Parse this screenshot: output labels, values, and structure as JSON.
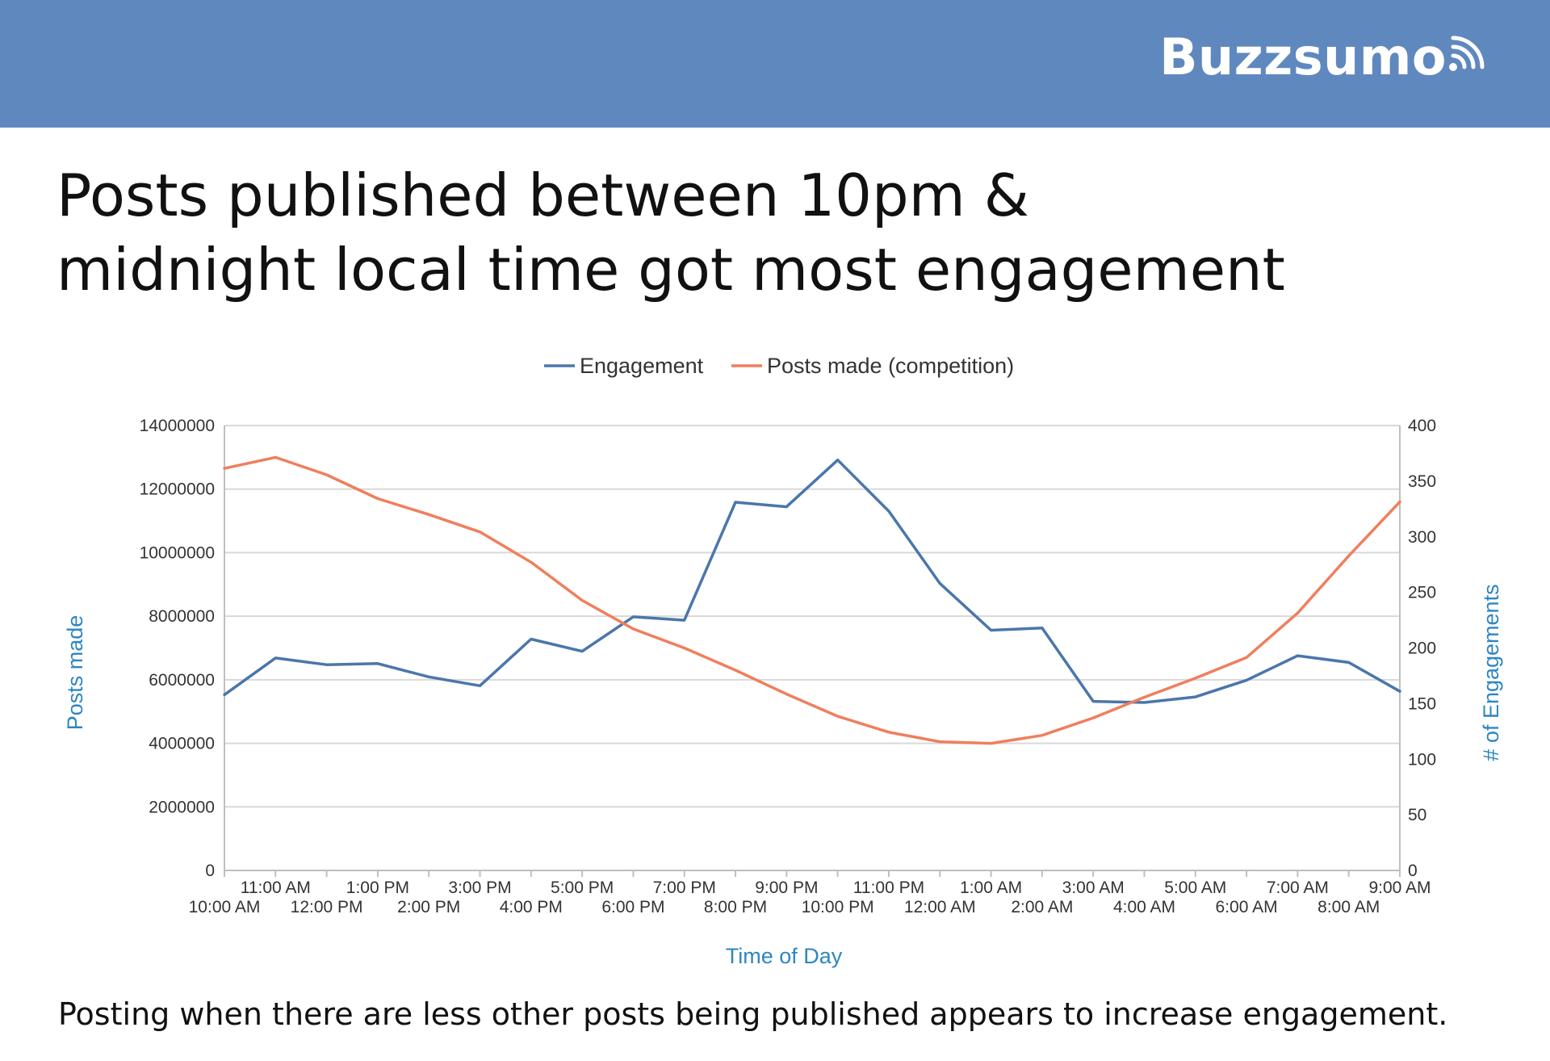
{
  "header": {
    "brand": "Buzzsumo",
    "brand_icon": "signal-waves-icon",
    "background_color": "#5f88be"
  },
  "title_lines": [
    "Posts published between 10pm &",
    "midnight local time got most engagement"
  ],
  "footnote": "Posting when there are less other posts being published appears to increase engagement.",
  "chart_data": {
    "type": "line",
    "title": "",
    "xlabel": "Time of Day",
    "ylabel": "Posts made",
    "y2label": "# of Engagements",
    "axis_title_color": "#2e86c1",
    "legend_position": "top-center",
    "grid": true,
    "categories": [
      "10:00 AM",
      "11:00 AM",
      "12:00 PM",
      "1:00 PM",
      "2:00 PM",
      "3:00 PM",
      "4:00 PM",
      "5:00 PM",
      "6:00 PM",
      "7:00 PM",
      "8:00 PM",
      "9:00 PM",
      "10:00 PM",
      "11:00 PM",
      "12:00 AM",
      "1:00 AM",
      "2:00 AM",
      "3:00 AM",
      "4:00 AM",
      "5:00 AM",
      "6:00 AM",
      "7:00 AM",
      "8:00 AM",
      "9:00 AM"
    ],
    "x_tick_rows": {
      "top": [
        "11:00 AM",
        "1:00 PM",
        "3:00 PM",
        "5:00 PM",
        "7:00 PM",
        "9:00 PM",
        "11:00 PM",
        "1:00 AM",
        "3:00 AM",
        "5:00 AM",
        "7:00 AM",
        "9:00 AM"
      ],
      "bottom": [
        "10:00 AM",
        "12:00 PM",
        "2:00 PM",
        "4:00 PM",
        "6:00 PM",
        "8:00 PM",
        "10:00 PM",
        "12:00 AM",
        "2:00 AM",
        "4:00 AM",
        "6:00 AM",
        "8:00 AM"
      ]
    },
    "ylim": [
      0,
      14000000
    ],
    "yticks": [
      "0",
      "2000000",
      "4000000",
      "6000000",
      "8000000",
      "10000000",
      "12000000",
      "14000000"
    ],
    "y2lim": [
      0,
      400
    ],
    "y2ticks": [
      "0",
      "50",
      "100",
      "150",
      "200",
      "250",
      "300",
      "350",
      "400"
    ],
    "series": [
      {
        "name": "Engagement",
        "axis": "right",
        "color": "#4a76ab",
        "values": [
          158,
          191,
          185,
          186,
          174,
          166,
          208,
          197,
          228,
          225,
          331,
          327,
          369,
          323,
          258,
          216,
          218,
          152,
          151,
          156,
          171,
          193,
          187,
          161
        ]
      },
      {
        "name": "Posts made (competition)",
        "axis": "left",
        "color": "#ef7f5d",
        "values": [
          12650000,
          13000000,
          12450000,
          11700000,
          11200000,
          10650000,
          9700000,
          8500000,
          7600000,
          7000000,
          6300000,
          5550000,
          4850000,
          4350000,
          4050000,
          4000000,
          4250000,
          4800000,
          5450000,
          6050000,
          6700000,
          8100000,
          9900000,
          11600000
        ]
      }
    ]
  }
}
